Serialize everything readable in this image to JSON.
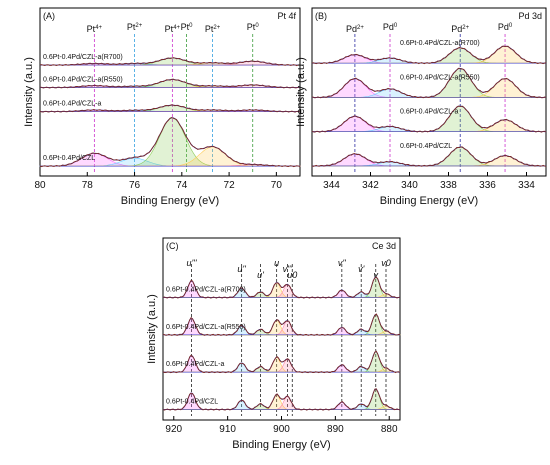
{
  "chart_data": [
    {
      "type": "line",
      "panel_label": "(A)",
      "title": "Pt 4f",
      "xlabel": "Binding Energy (eV)",
      "ylabel": "Intensity (a.u.)",
      "xlim": [
        80,
        69
      ],
      "x_ticks": [
        "80",
        "78",
        "76",
        "74",
        "72",
        "70"
      ],
      "x_tick_values": [
        80,
        78,
        76,
        74,
        72,
        70
      ],
      "series": [
        {
          "name": "0.6Pt-0.4Pd/CZL-a(R700)",
          "offset": 3.15,
          "peaks": [
            [
              77.7,
              0.05
            ],
            [
              76.0,
              0.05
            ],
            [
              74.4,
              0.22
            ],
            [
              72.7,
              0.07
            ],
            [
              71.0,
              0.12
            ]
          ]
        },
        {
          "name": "0.6Pt-0.4Pd/CZL-a(R550)",
          "offset": 2.45,
          "peaks": [
            [
              77.7,
              0.06
            ],
            [
              76.0,
              0.04
            ],
            [
              74.4,
              0.25
            ],
            [
              72.7,
              0.05
            ],
            [
              71.0,
              0.08
            ]
          ]
        },
        {
          "name": "0.6Pt-0.4Pd/CZL-a",
          "offset": 1.7,
          "peaks": [
            [
              77.7,
              0.05
            ],
            [
              76.0,
              0.04
            ],
            [
              74.4,
              0.2
            ],
            [
              72.7,
              0.05
            ],
            [
              71.0,
              0.05
            ]
          ]
        },
        {
          "name": "0.6Pt-0.4Pd/CZL",
          "offset": 0.0,
          "peaks": [
            [
              77.7,
              0.4
            ],
            [
              76.0,
              0.25
            ],
            [
              74.4,
              1.5
            ],
            [
              72.7,
              0.6
            ],
            [
              71.0,
              0.05
            ]
          ]
        }
      ],
      "ref_lines": [
        {
          "label": "Pt",
          "sup": "4+",
          "x": 77.7,
          "color": "#cc33cc"
        },
        {
          "label": "Pt",
          "sup": "2+",
          "x": 76.0,
          "color": "#33a0e0"
        },
        {
          "label": "Pt",
          "sup": "4+",
          "x": 74.4,
          "color": "#cc33cc"
        },
        {
          "label": "Pt",
          "sup": "0",
          "x": 73.8,
          "color": "#3a9a3a"
        },
        {
          "label": "Pt",
          "sup": "2+",
          "x": 72.7,
          "color": "#33a0e0"
        },
        {
          "label": "Pt",
          "sup": "0",
          "x": 71.0,
          "color": "#3a9a3a"
        }
      ]
    },
    {
      "type": "line",
      "panel_label": "(B)",
      "title": "Pd 3d",
      "xlabel": "Binding Energy (eV)",
      "ylabel": "Intensity (a.u.)",
      "xlim": [
        345,
        333
      ],
      "x_ticks": [
        "344",
        "342",
        "340",
        "338",
        "336",
        "334"
      ],
      "x_tick_values": [
        344,
        342,
        340,
        338,
        336,
        334
      ],
      "series": [
        {
          "name": "0.6Pt-0.4Pd/CZL-a(R700)",
          "offset": 3.0,
          "peaks": [
            [
              342.8,
              0.25
            ],
            [
              341.0,
              0.15
            ],
            [
              337.4,
              0.45
            ],
            [
              335.1,
              0.5
            ]
          ]
        },
        {
          "name": "0.6Pt-0.4Pd/CZL-a(R550)",
          "offset": 2.0,
          "peaks": [
            [
              342.8,
              0.55
            ],
            [
              341.0,
              0.25
            ],
            [
              337.4,
              0.85
            ],
            [
              335.1,
              0.55
            ]
          ]
        },
        {
          "name": "0.6Pt-0.4Pd/CZL-a",
          "offset": 1.0,
          "peaks": [
            [
              342.8,
              0.45
            ],
            [
              341.0,
              0.15
            ],
            [
              337.4,
              0.75
            ],
            [
              335.1,
              0.35
            ]
          ]
        },
        {
          "name": "0.6Pt-0.4Pd/CZL",
          "offset": 0.0,
          "peaks": [
            [
              342.8,
              0.35
            ],
            [
              341.0,
              0.12
            ],
            [
              337.4,
              0.55
            ],
            [
              335.1,
              0.3
            ]
          ]
        }
      ],
      "ref_lines": [
        {
          "label": "Pd",
          "sup": "2+",
          "x": 342.8,
          "color": "#2a2aa0"
        },
        {
          "label": "Pd",
          "sup": "0",
          "x": 341.0,
          "color": "#cc33cc"
        },
        {
          "label": "Pd",
          "sup": "2+",
          "x": 337.4,
          "color": "#2a2aa0"
        },
        {
          "label": "Pd",
          "sup": "0",
          "x": 335.1,
          "color": "#cc33cc"
        }
      ]
    },
    {
      "type": "line",
      "panel_label": "(C)",
      "title": "Ce 3d",
      "xlabel": "Binding Energy (eV)",
      "ylabel": "Intensity (a.u.)",
      "xlim": [
        922,
        878
      ],
      "x_ticks": [
        "920",
        "910",
        "900",
        "890",
        "880"
      ],
      "x_tick_values": [
        920,
        910,
        900,
        890,
        880
      ],
      "series": [
        {
          "name": "0.6Pt-0.4Pd/CZL-a(R700)",
          "offset": 3.0,
          "peaks": [
            [
              916.7,
              0.45
            ],
            [
              907.4,
              0.25
            ],
            [
              903.9,
              0.15
            ],
            [
              900.9,
              0.4
            ],
            [
              898.9,
              0.35
            ],
            [
              888.8,
              0.2
            ],
            [
              885.2,
              0.15
            ],
            [
              882.5,
              0.55
            ],
            [
              880.6,
              0.1
            ]
          ]
        },
        {
          "name": "0.6Pt-0.4Pd/CZL-a(R550)",
          "offset": 2.0,
          "peaks": [
            [
              916.7,
              0.45
            ],
            [
              907.4,
              0.25
            ],
            [
              903.9,
              0.15
            ],
            [
              900.9,
              0.4
            ],
            [
              898.9,
              0.38
            ],
            [
              888.8,
              0.2
            ],
            [
              885.2,
              0.15
            ],
            [
              882.5,
              0.55
            ],
            [
              880.6,
              0.1
            ]
          ]
        },
        {
          "name": "0.6Pt-0.4Pd/CZL-a",
          "offset": 1.0,
          "peaks": [
            [
              916.7,
              0.45
            ],
            [
              907.4,
              0.25
            ],
            [
              903.9,
              0.15
            ],
            [
              900.9,
              0.4
            ],
            [
              898.9,
              0.35
            ],
            [
              888.8,
              0.2
            ],
            [
              885.2,
              0.15
            ],
            [
              882.5,
              0.55
            ],
            [
              880.6,
              0.1
            ]
          ]
        },
        {
          "name": "0.6Pt-0.4Pd/CZL",
          "offset": 0.0,
          "peaks": [
            [
              916.7,
              0.45
            ],
            [
              907.4,
              0.25
            ],
            [
              903.9,
              0.15
            ],
            [
              900.9,
              0.4
            ],
            [
              898.9,
              0.35
            ],
            [
              888.8,
              0.2
            ],
            [
              885.2,
              0.15
            ],
            [
              882.5,
              0.55
            ],
            [
              880.6,
              0.1
            ]
          ]
        }
      ],
      "ref_lines": [
        {
          "label": "u'''",
          "x": 916.7,
          "color": "#222222"
        },
        {
          "label": "u''",
          "x": 907.4,
          "color": "#222222"
        },
        {
          "label": "u'",
          "x": 903.9,
          "color": "#222222"
        },
        {
          "label": "u",
          "x": 900.9,
          "color": "#222222"
        },
        {
          "label": "v'''",
          "x": 898.9,
          "color": "#222222"
        },
        {
          "label": "u0",
          "x": 898.0,
          "color": "#222222"
        },
        {
          "label": "v''",
          "x": 888.8,
          "color": "#222222"
        },
        {
          "label": "v'",
          "x": 885.2,
          "color": "#222222"
        },
        {
          "label": "v",
          "x": 882.5,
          "color": "#222222"
        },
        {
          "label": "v0",
          "x": 880.6,
          "color": "#222222"
        }
      ]
    }
  ]
}
